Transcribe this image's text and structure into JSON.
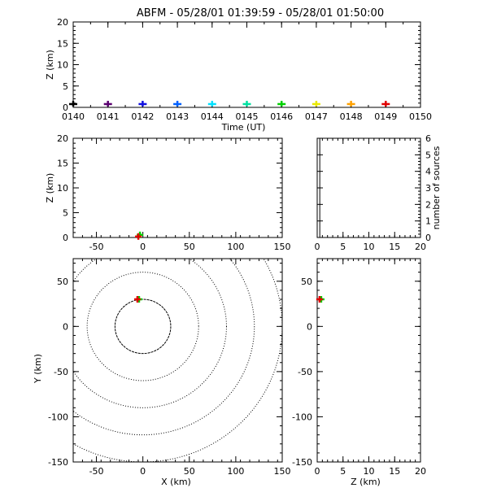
{
  "title": "ABFM - 05/28/01 01:39:59 - 05/28/01 01:50:00",
  "chart_data": [
    {
      "id": "time-height",
      "type": "scatter",
      "xlabel": "Time (UT)",
      "ylabel": "Z (km)",
      "xticks": [
        "0140",
        "0141",
        "0142",
        "0143",
        "0144",
        "0145",
        "0146",
        "0147",
        "0148",
        "0149",
        "0150"
      ],
      "xlim": [
        0,
        10
      ],
      "ylim": [
        0,
        20
      ],
      "yticks": [
        0,
        5,
        10,
        15,
        20
      ],
      "points": [
        {
          "t": 0.0,
          "z": 0.2,
          "color": "#000000"
        },
        {
          "t": 1.0,
          "z": 0.2,
          "color": "#5a0070"
        },
        {
          "t": 2.0,
          "z": 0.2,
          "color": "#1010e0"
        },
        {
          "t": 3.0,
          "z": 0.2,
          "color": "#0060ff"
        },
        {
          "t": 4.0,
          "z": 0.2,
          "color": "#00e0ff"
        },
        {
          "t": 5.0,
          "z": 0.2,
          "color": "#00e0a0"
        },
        {
          "t": 6.0,
          "z": 0.2,
          "color": "#00d000"
        },
        {
          "t": 7.0,
          "z": 0.2,
          "color": "#e8e800"
        },
        {
          "t": 8.0,
          "z": 0.2,
          "color": "#ffa000"
        },
        {
          "t": 9.0,
          "z": 0.2,
          "color": "#e00000"
        }
      ]
    },
    {
      "id": "x-height",
      "type": "scatter",
      "xlabel": "",
      "ylabel": "Z (km)",
      "xlim": [
        -75,
        150
      ],
      "ylim": [
        0,
        20
      ],
      "xticks": [
        -50,
        0,
        50,
        100,
        150
      ],
      "yticks": [
        0,
        5,
        10,
        15,
        20
      ],
      "points": [
        {
          "x": -4,
          "z": 0.2,
          "color": "#00d000"
        },
        {
          "x": -4,
          "z": 0.2,
          "color": "#e00000"
        }
      ]
    },
    {
      "id": "height-histogram",
      "type": "bar",
      "xlabel": "",
      "ylabel": "number of sources",
      "xlim": [
        0,
        20
      ],
      "ylim": [
        0,
        6
      ],
      "xticks": [
        0,
        5,
        10,
        15,
        20
      ],
      "yticks": [
        0,
        1,
        2,
        3,
        4,
        5,
        6
      ],
      "bins": [
        {
          "from": 0,
          "to": 0.5,
          "count": 6
        }
      ]
    },
    {
      "id": "plan-view",
      "type": "scatter",
      "xlabel": "X (km)",
      "ylabel": "Y (km)",
      "xlim": [
        -75,
        150
      ],
      "ylim": [
        -150,
        75
      ],
      "xticks": [
        -50,
        0,
        50,
        100,
        150
      ],
      "yticks": [
        -150,
        -100,
        -50,
        0,
        50
      ],
      "range_rings_km": [
        30,
        60,
        90,
        120,
        150
      ],
      "points": [
        {
          "x": -5,
          "y": 30,
          "color": "#00d000"
        },
        {
          "x": -5,
          "y": 30,
          "color": "#e00000"
        }
      ]
    },
    {
      "id": "height-y",
      "type": "scatter",
      "xlabel": "Z (km)",
      "ylabel": "",
      "xlim": [
        0,
        20
      ],
      "ylim": [
        -150,
        75
      ],
      "xticks": [
        0,
        5,
        10,
        15,
        20
      ],
      "yticks": [
        -150,
        -100,
        -50,
        0,
        50
      ],
      "points": [
        {
          "z": 0.3,
          "y": 30,
          "color": "#00d000"
        },
        {
          "z": 0.3,
          "y": 30,
          "color": "#e00000"
        }
      ]
    }
  ]
}
